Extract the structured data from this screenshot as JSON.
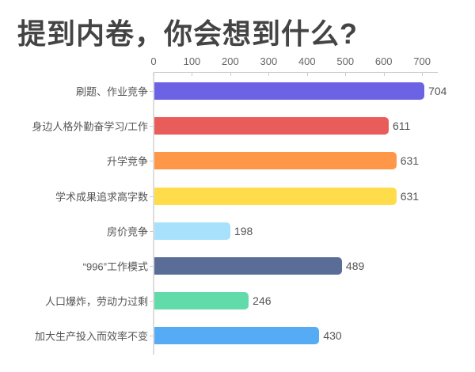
{
  "title": "提到内卷，你会想到什么?",
  "chart_data": {
    "type": "bar",
    "orientation": "horizontal",
    "title": "提到内卷，你会想到什么?",
    "xlabel": "",
    "ylabel": "",
    "xlim": [
      0,
      740
    ],
    "x_ticks": [
      "0",
      "100",
      "200",
      "300",
      "400",
      "500",
      "600",
      "700"
    ],
    "x_axis_position": "top",
    "grid": false,
    "legend": null,
    "categories": [
      "刷题、作业竞争",
      "身边人格外勤奋学习/工作",
      "升学竞争",
      "学术成果追求高字数",
      "房价竞争",
      "“996”工作模式",
      "人口爆炸，劳动力过剩",
      "加大生产投入而效率不变"
    ],
    "values": [
      704,
      611,
      631,
      631,
      198,
      489,
      246,
      430
    ],
    "colors": [
      "#6c63e4",
      "#e85c59",
      "#ff9748",
      "#ffdd4a",
      "#a8e1fb",
      "#5a6d96",
      "#62dbab",
      "#56acf4"
    ],
    "value_labels": [
      "704",
      "611",
      "631",
      "631",
      "198",
      "489",
      "246",
      "430"
    ]
  }
}
